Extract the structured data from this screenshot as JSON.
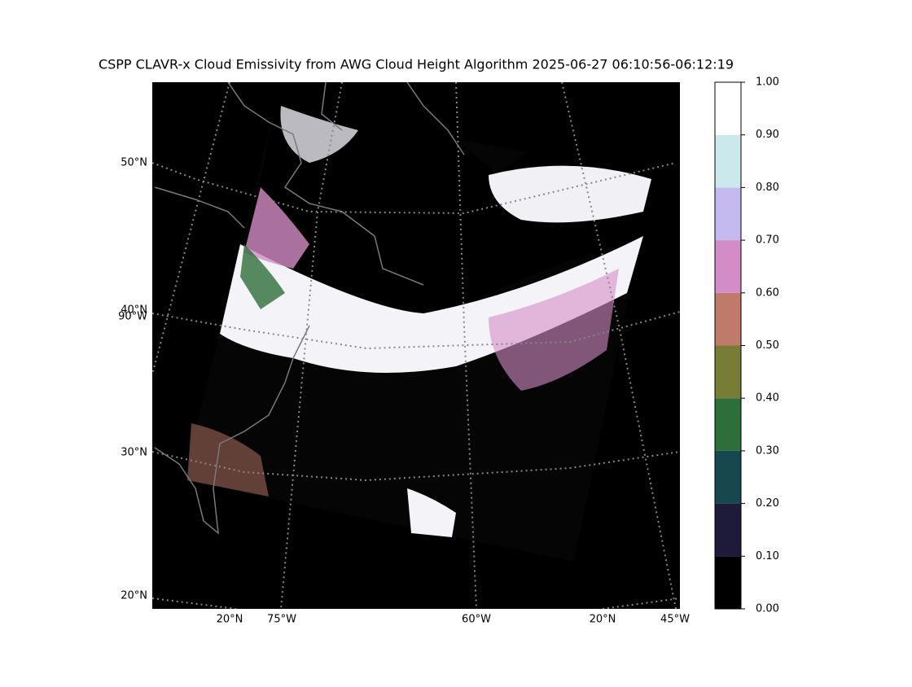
{
  "title": "CSPP CLAVR-x Cloud Emissivity from AWG Cloud Height Algorithm 2025-06-27 06:10:56-06:12:19",
  "map": {
    "left_labels": [
      "50°N",
      "40°N",
      "90°W",
      "30°N",
      "20°N"
    ],
    "bottom_labels": [
      "20°N",
      "75°W",
      "60°W",
      "20°N",
      "45°W"
    ]
  },
  "colorbar": {
    "ylim": [
      0,
      1
    ],
    "yticks": [
      {
        "value": 0,
        "label": "0.00"
      },
      {
        "value": 0.1,
        "label": "0.10"
      },
      {
        "value": 0.2,
        "label": "0.20"
      },
      {
        "value": 0.3,
        "label": "0.30"
      },
      {
        "value": 0.4,
        "label": "0.40"
      },
      {
        "value": 0.5,
        "label": "0.50"
      },
      {
        "value": 0.6,
        "label": "0.60"
      },
      {
        "value": 0.7,
        "label": "0.70"
      },
      {
        "value": 0.8,
        "label": "0.80"
      },
      {
        "value": 0.9,
        "label": "0.90"
      },
      {
        "value": 1,
        "label": "1.00"
      }
    ],
    "colors": [
      "#000000",
      "#1e1a3a",
      "#17474f",
      "#2e6e3a",
      "#797c35",
      "#c07a6a",
      "#d48cc6",
      "#c4baf0",
      "#cbe9ec",
      "#ffffff"
    ]
  }
}
